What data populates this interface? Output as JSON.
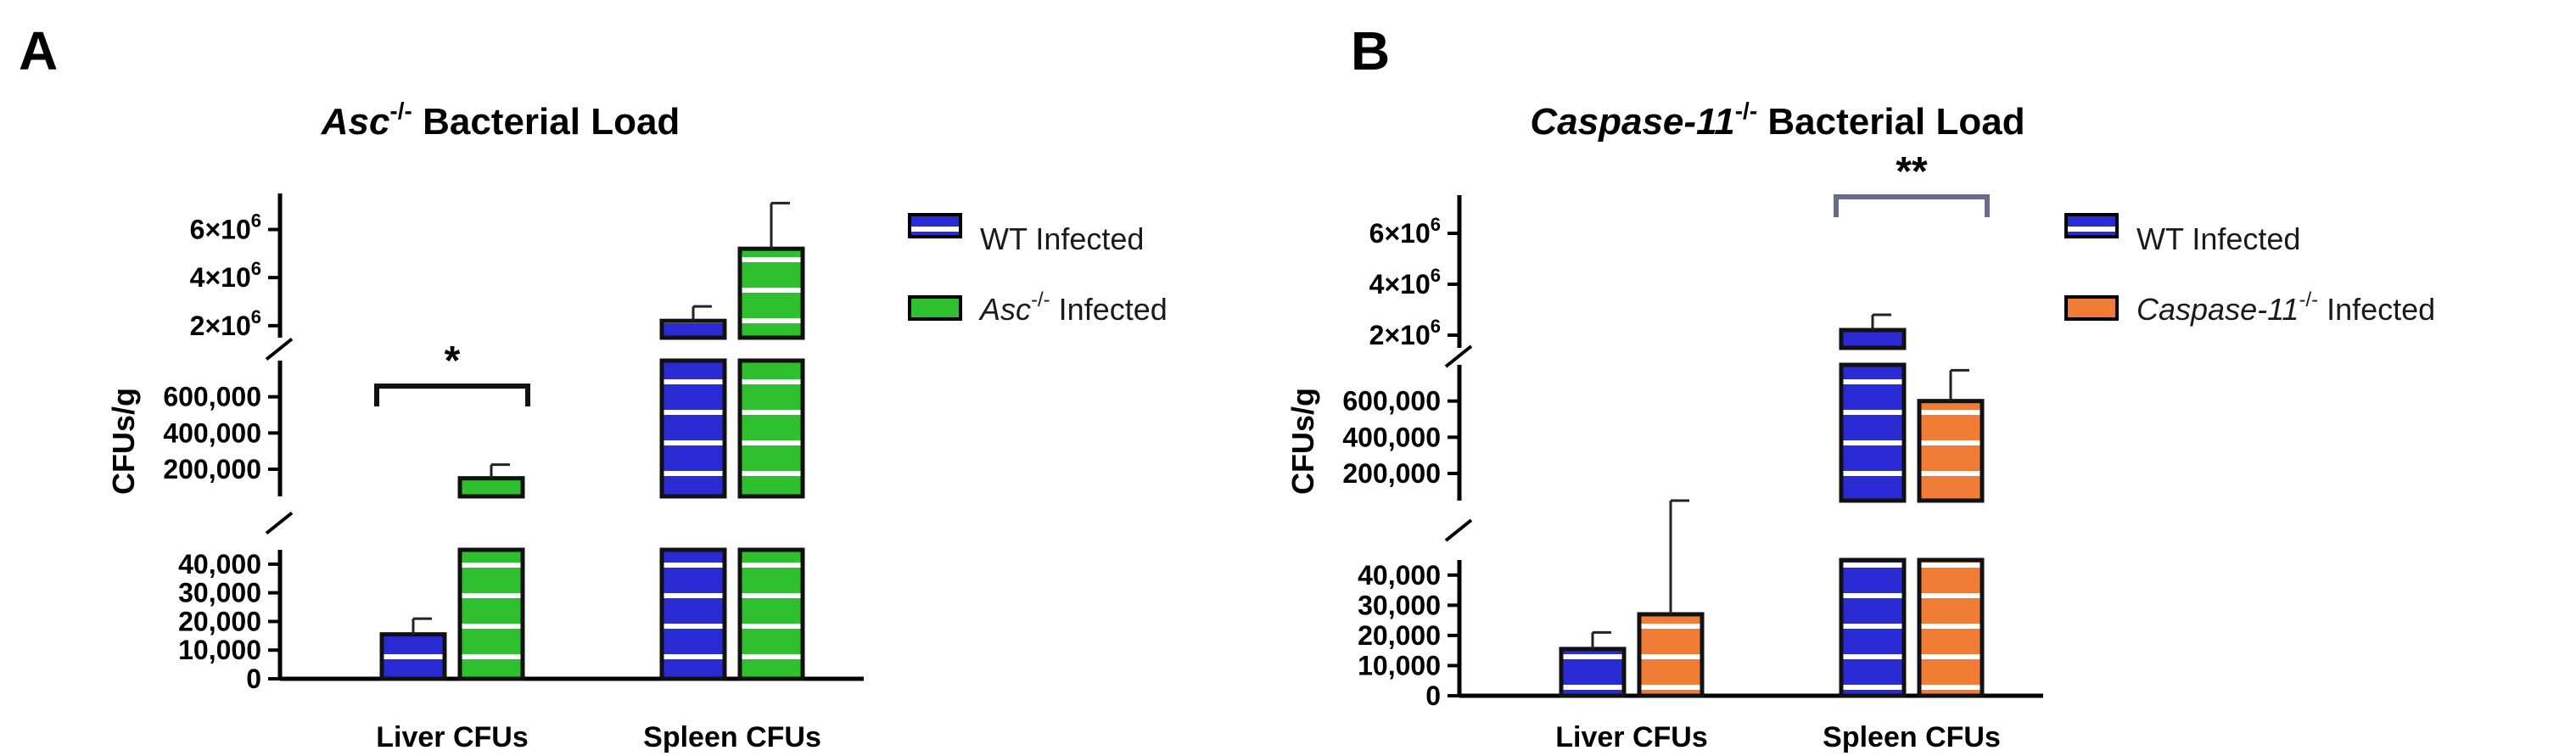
{
  "colors": {
    "wt": "#2b2bd6",
    "asc": "#2ec02e",
    "casp": "#f07c35",
    "stripe": "#ffffff",
    "bracketB": "#6a6a8c"
  },
  "chart_data": [
    {
      "panel": "A",
      "type": "bar",
      "title_italic": "Asc",
      "title_sup": "-/-",
      "title_rest": " Bacterial Load",
      "ylabel": "CFUs/g",
      "y_scale": "broken",
      "segments": [
        {
          "range": [
            0,
            45000
          ],
          "ticks": [
            0,
            10000,
            20000,
            30000,
            40000
          ],
          "tick_labels": [
            "0",
            "10,000",
            "20,000",
            "30,000",
            "40,000"
          ]
        },
        {
          "range": [
            50000,
            800000
          ],
          "ticks": [
            200000,
            400000,
            600000
          ],
          "tick_labels": [
            "200,000",
            "400,000",
            "600,000"
          ]
        },
        {
          "range": [
            1500000,
            7500000
          ],
          "ticks": [
            2000000,
            4000000,
            6000000
          ],
          "tick_labels": [
            "2×10",
            "4×10",
            "6×10"
          ],
          "tick_sup": "6"
        }
      ],
      "categories": [
        "Liver CFUs",
        "Spleen CFUs"
      ],
      "series": [
        {
          "name": "WT Infected",
          "legend_italic": "",
          "legend_sup": "",
          "legend_rest": "WT Infected",
          "color_key": "wt",
          "values": [
            15500,
            2200000
          ],
          "errors": [
            5500,
            600000
          ]
        },
        {
          "name": "Asc-/- Infected",
          "legend_italic": "Asc",
          "legend_sup": "-/-",
          "legend_rest": " Infected",
          "color_key": "asc",
          "values": [
            150000,
            5200000
          ],
          "errors": [
            75000,
            1900000
          ]
        }
      ],
      "significance": {
        "label": "*",
        "category": "Liver CFUs"
      }
    },
    {
      "panel": "B",
      "type": "bar",
      "title_italic": "Caspase-11",
      "title_sup": "-/-",
      "title_rest": " Bacterial Load",
      "ylabel": "CFUs/g",
      "y_scale": "broken",
      "segments": [
        {
          "range": [
            0,
            45000
          ],
          "ticks": [
            0,
            10000,
            20000,
            30000,
            40000
          ],
          "tick_labels": [
            "0",
            "10,000",
            "20,000",
            "30,000",
            "40,000"
          ]
        },
        {
          "range": [
            50000,
            800000
          ],
          "ticks": [
            200000,
            400000,
            600000
          ],
          "tick_labels": [
            "200,000",
            "400,000",
            "600,000"
          ]
        },
        {
          "range": [
            1500000,
            7500000
          ],
          "ticks": [
            2000000,
            4000000,
            6000000
          ],
          "tick_labels": [
            "2×10",
            "4×10",
            "6×10"
          ],
          "tick_sup": "6"
        }
      ],
      "categories": [
        "Liver CFUs",
        "Spleen CFUs"
      ],
      "series": [
        {
          "name": "WT Infected",
          "legend_italic": "",
          "legend_sup": "",
          "legend_rest": "WT Infected",
          "color_key": "wt",
          "values": [
            15500,
            2200000
          ],
          "errors": [
            5500,
            600000
          ]
        },
        {
          "name": "Caspase-11-/- Infected",
          "legend_italic": "Caspase-11",
          "legend_sup": "-/-",
          "legend_rest": " Infected",
          "color_key": "casp",
          "values": [
            27000,
            600000
          ],
          "errors": [
            19000,
            170000
          ]
        }
      ],
      "significance": {
        "label": "**",
        "category": "Spleen CFUs"
      }
    }
  ]
}
